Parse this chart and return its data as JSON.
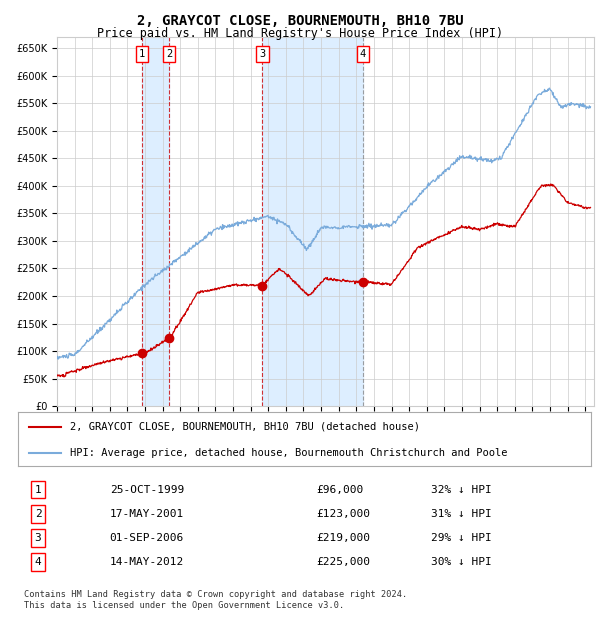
{
  "title": "2, GRAYCOT CLOSE, BOURNEMOUTH, BH10 7BU",
  "subtitle": "Price paid vs. HM Land Registry's House Price Index (HPI)",
  "title_fontsize": 10,
  "subtitle_fontsize": 8.5,
  "background_color": "#ffffff",
  "plot_bg_color": "#ffffff",
  "grid_color": "#cccccc",
  "hpi_line_color": "#7aabdb",
  "price_line_color": "#cc0000",
  "highlight_color": "#ddeeff",
  "ylim": [
    0,
    670000
  ],
  "yticks": [
    0,
    50000,
    100000,
    150000,
    200000,
    250000,
    300000,
    350000,
    400000,
    450000,
    500000,
    550000,
    600000,
    650000
  ],
  "xlim_start": 1995.0,
  "xlim_end": 2025.5,
  "transactions": [
    {
      "num": 1,
      "date_label": "25-OCT-1999",
      "date_x": 1999.82,
      "price": 96000,
      "price_label": "£96,000",
      "pct_label": "32% ↓ HPI",
      "vline_color": "#cc0000"
    },
    {
      "num": 2,
      "date_label": "17-MAY-2001",
      "date_x": 2001.38,
      "price": 123000,
      "price_label": "£123,000",
      "pct_label": "31% ↓ HPI",
      "vline_color": "#cc0000"
    },
    {
      "num": 3,
      "date_label": "01-SEP-2006",
      "date_x": 2006.67,
      "price": 219000,
      "price_label": "£219,000",
      "pct_label": "29% ↓ HPI",
      "vline_color": "#cc0000"
    },
    {
      "num": 4,
      "date_label": "14-MAY-2012",
      "date_x": 2012.38,
      "price": 225000,
      "price_label": "£225,000",
      "pct_label": "30% ↓ HPI",
      "vline_color": "#888888"
    }
  ],
  "legend1": "2, GRAYCOT CLOSE, BOURNEMOUTH, BH10 7BU (detached house)",
  "legend2": "HPI: Average price, detached house, Bournemouth Christchurch and Poole",
  "footnote": "Contains HM Land Registry data © Crown copyright and database right 2024.\nThis data is licensed under the Open Government Licence v3.0."
}
